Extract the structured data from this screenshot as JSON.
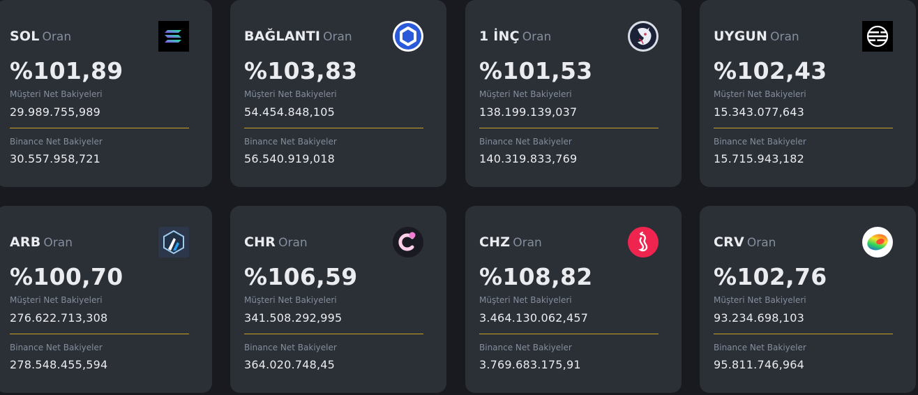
{
  "labels": {
    "rate_suffix": "Oran",
    "customer_balances": "Müşteri Net Bakiyeleri",
    "binance_balances": "Binance Net Bakiyeler"
  },
  "colors": {
    "background": "#181a20",
    "card": "#2b2f36",
    "divider": "#c9a227"
  },
  "cards": [
    {
      "symbol": "SOL",
      "icon": "solana-icon",
      "ratio": "%101,89",
      "customer_balance": "29.989.755,989",
      "binance_balance": "30.557.958,721"
    },
    {
      "symbol": "BAĞLANTI",
      "icon": "chainlink-icon",
      "ratio": "%103,83",
      "customer_balance": "54.454.848,105",
      "binance_balance": "56.540.919,018"
    },
    {
      "symbol": "1 İNÇ",
      "icon": "1inch-icon",
      "ratio": "%101,53",
      "customer_balance": "138.199.139,037",
      "binance_balance": "140.319.833,769"
    },
    {
      "symbol": "UYGUN",
      "icon": "aptos-icon",
      "ratio": "%102,43",
      "customer_balance": "15.343.077,643",
      "binance_balance": "15.715.943,182"
    },
    {
      "symbol": "ARB",
      "icon": "arbitrum-icon",
      "ratio": "%100,70",
      "customer_balance": "276.622.713,308",
      "binance_balance": "278.548.455,594"
    },
    {
      "symbol": "CHR",
      "icon": "chromia-icon",
      "ratio": "%106,59",
      "customer_balance": "341.508.292,995",
      "binance_balance": "364.020.748,45"
    },
    {
      "symbol": "CHZ",
      "icon": "chiliz-icon",
      "ratio": "%108,82",
      "customer_balance": "3.464.130.062,457",
      "binance_balance": "3.769.683.175,91"
    },
    {
      "symbol": "CRV",
      "icon": "curve-icon",
      "ratio": "%102,76",
      "customer_balance": "93.234.698,103",
      "binance_balance": "95.811.746,964"
    }
  ]
}
